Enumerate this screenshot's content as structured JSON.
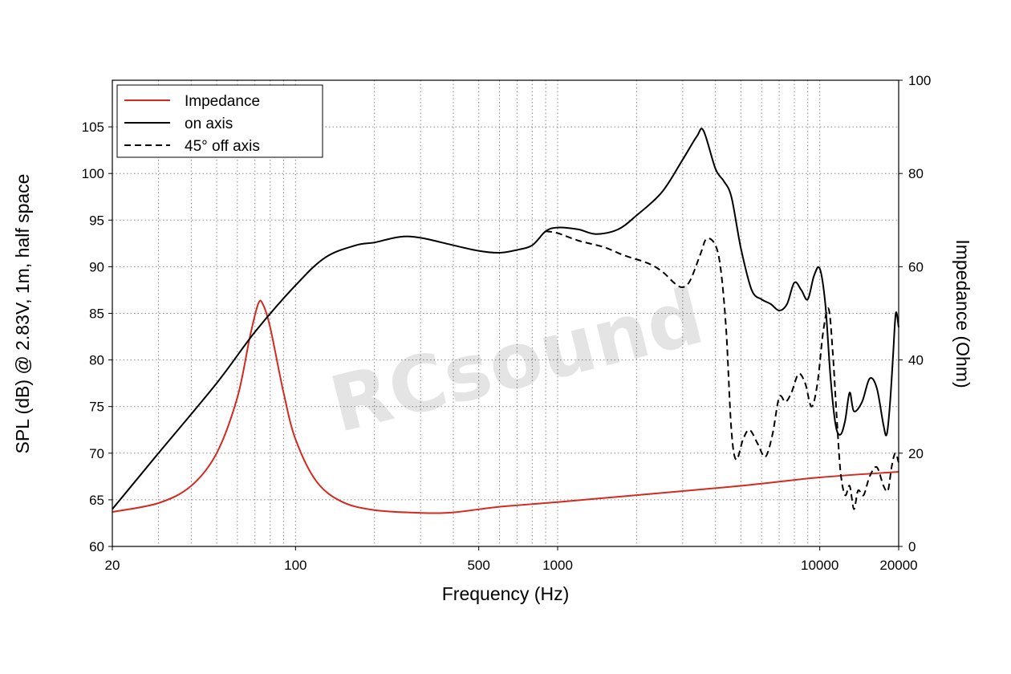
{
  "chart_data": {
    "type": "line",
    "title": "",
    "xlabel": "Frequency (Hz)",
    "ylabel_left": "SPL (dB) @ 2.83V, 1m, half space",
    "ylabel_right": "Impedance (Ohm)",
    "x_scale": "log",
    "xlim": [
      20,
      20000
    ],
    "ylim_left": [
      60,
      110
    ],
    "ylim_right": [
      0,
      100
    ],
    "x_ticks": [
      20,
      100,
      500,
      1000,
      10000,
      20000
    ],
    "x_tick_labels": [
      "20",
      "100",
      "500",
      "1000",
      "10000",
      "20000"
    ],
    "y_ticks_left": [
      60,
      65,
      70,
      75,
      80,
      85,
      90,
      95,
      100,
      105
    ],
    "y_tick_labels_left": [
      "60",
      "65",
      "70",
      "75",
      "80",
      "85",
      "90",
      "95",
      "100",
      "105"
    ],
    "y_ticks_right": [
      0,
      20,
      40,
      60,
      80,
      100
    ],
    "y_tick_labels_right": [
      "0",
      "20",
      "40",
      "60",
      "80",
      "100"
    ],
    "grid": true,
    "legend_position": "top-left",
    "watermark": "RCsound",
    "series": [
      {
        "name": "Impedance",
        "axis": "right",
        "color": "#d42a1e",
        "dash": "solid",
        "points": [
          [
            20,
            7.4
          ],
          [
            30,
            9.3
          ],
          [
            40,
            13
          ],
          [
            50,
            20
          ],
          [
            60,
            32
          ],
          [
            67,
            45
          ],
          [
            72,
            52
          ],
          [
            75,
            52
          ],
          [
            80,
            47
          ],
          [
            90,
            33
          ],
          [
            100,
            23
          ],
          [
            120,
            14
          ],
          [
            150,
            9.6
          ],
          [
            200,
            7.8
          ],
          [
            300,
            7.2
          ],
          [
            400,
            7.3
          ],
          [
            600,
            8.5
          ],
          [
            1000,
            9.5
          ],
          [
            2000,
            11
          ],
          [
            5000,
            13
          ],
          [
            10000,
            14.8
          ],
          [
            20000,
            16
          ]
        ]
      },
      {
        "name": "on axis",
        "axis": "left",
        "color": "#000000",
        "dash": "solid",
        "points": [
          [
            20,
            64
          ],
          [
            30,
            70
          ],
          [
            50,
            77.5
          ],
          [
            70,
            83
          ],
          [
            100,
            88
          ],
          [
            130,
            91
          ],
          [
            170,
            92.3
          ],
          [
            200,
            92.6
          ],
          [
            250,
            93.2
          ],
          [
            300,
            93.1
          ],
          [
            400,
            92.3
          ],
          [
            500,
            91.7
          ],
          [
            600,
            91.5
          ],
          [
            700,
            91.8
          ],
          [
            800,
            92.3
          ],
          [
            900,
            93.8
          ],
          [
            1000,
            94.2
          ],
          [
            1200,
            94.0
          ],
          [
            1400,
            93.5
          ],
          [
            1700,
            94.0
          ],
          [
            2000,
            95.5
          ],
          [
            2500,
            98.0
          ],
          [
            3000,
            101.5
          ],
          [
            3400,
            104.0
          ],
          [
            3600,
            104.6
          ],
          [
            4000,
            100.5
          ],
          [
            4300,
            99.2
          ],
          [
            4600,
            97.5
          ],
          [
            5000,
            92.0
          ],
          [
            5500,
            87.5
          ],
          [
            6000,
            86.5
          ],
          [
            6500,
            86.0
          ],
          [
            7000,
            85.3
          ],
          [
            7500,
            86.0
          ],
          [
            8000,
            88.3
          ],
          [
            8500,
            87.5
          ],
          [
            9000,
            86.5
          ],
          [
            9500,
            89.0
          ],
          [
            10000,
            89.8
          ],
          [
            10500,
            86.0
          ],
          [
            11000,
            78.0
          ],
          [
            11500,
            73.0
          ],
          [
            12000,
            72.0
          ],
          [
            12500,
            73.5
          ],
          [
            13000,
            76.5
          ],
          [
            13500,
            74.5
          ],
          [
            14500,
            75.5
          ],
          [
            15500,
            78.0
          ],
          [
            16500,
            77.0
          ],
          [
            17500,
            73.0
          ],
          [
            18000,
            72.0
          ],
          [
            18500,
            75.0
          ],
          [
            19000,
            80.0
          ],
          [
            19500,
            85.0
          ],
          [
            20000,
            83.5
          ]
        ]
      },
      {
        "name": "45° off axis",
        "axis": "left",
        "color": "#000000",
        "dash": "dashed",
        "points": [
          [
            900,
            93.8
          ],
          [
            1000,
            93.6
          ],
          [
            1200,
            92.8
          ],
          [
            1500,
            92.1
          ],
          [
            1800,
            91.2
          ],
          [
            2200,
            90.4
          ],
          [
            2500,
            89.5
          ],
          [
            2800,
            88.2
          ],
          [
            3000,
            87.8
          ],
          [
            3200,
            88.5
          ],
          [
            3500,
            91.3
          ],
          [
            3700,
            93.0
          ],
          [
            4000,
            92.3
          ],
          [
            4200,
            89.5
          ],
          [
            4400,
            83.0
          ],
          [
            4600,
            72.5
          ],
          [
            4800,
            69.3
          ],
          [
            5100,
            71.5
          ],
          [
            5400,
            72.5
          ],
          [
            5800,
            71.0
          ],
          [
            6200,
            69.6
          ],
          [
            6600,
            72.0
          ],
          [
            7000,
            76.0
          ],
          [
            7400,
            75.5
          ],
          [
            7800,
            76.5
          ],
          [
            8300,
            78.5
          ],
          [
            8800,
            77.5
          ],
          [
            9300,
            75.0
          ],
          [
            9800,
            77.5
          ],
          [
            10300,
            83.0
          ],
          [
            10800,
            85.5
          ],
          [
            11200,
            81.0
          ],
          [
            11600,
            74.0
          ],
          [
            12000,
            68.0
          ],
          [
            12500,
            65.5
          ],
          [
            13000,
            66.5
          ],
          [
            13500,
            64.0
          ],
          [
            14000,
            66.0
          ],
          [
            14700,
            65.5
          ],
          [
            15500,
            67.5
          ],
          [
            16500,
            68.5
          ],
          [
            17500,
            66.5
          ],
          [
            18200,
            66.0
          ],
          [
            18800,
            68.5
          ],
          [
            19400,
            70.0
          ],
          [
            20000,
            69.0
          ]
        ]
      }
    ]
  }
}
